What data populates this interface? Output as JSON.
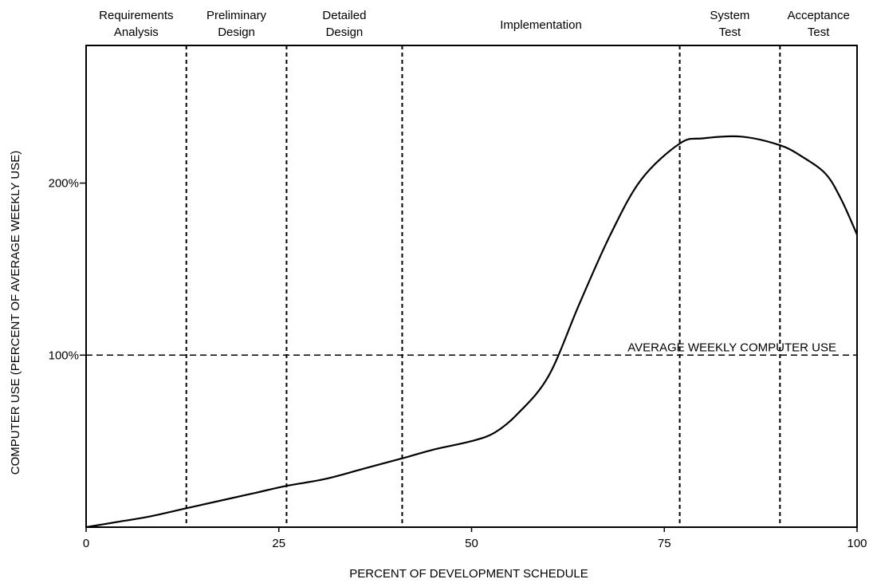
{
  "chart_data": {
    "type": "line",
    "title": "",
    "xlabel": "PERCENT OF DEVELOPMENT SCHEDULE",
    "ylabel": "COMPUTER USE (PERCENT OF AVERAGE WEEKLY USE)",
    "xlim": [
      0,
      100
    ],
    "ylim": [
      0,
      280
    ],
    "grid": false,
    "x_ticks": [
      {
        "value": 0,
        "label": "0"
      },
      {
        "value": 25,
        "label": "25"
      },
      {
        "value": 50,
        "label": "50"
      },
      {
        "value": 75,
        "label": "75"
      },
      {
        "value": 100,
        "label": "100"
      }
    ],
    "y_ticks": [
      {
        "value": 100,
        "label": "100%"
      },
      {
        "value": 200,
        "label": "200%"
      }
    ],
    "phases": [
      {
        "lines": [
          "Requirements",
          "Analysis"
        ],
        "start": 0,
        "end": 13
      },
      {
        "lines": [
          "Preliminary",
          "Design"
        ],
        "start": 13,
        "end": 26
      },
      {
        "lines": [
          "Detailed",
          "Design"
        ],
        "start": 26,
        "end": 41
      },
      {
        "lines": [
          "Implementation"
        ],
        "start": 41,
        "end": 77
      },
      {
        "lines": [
          "System",
          "Test"
        ],
        "start": 77,
        "end": 90
      },
      {
        "lines": [
          "Acceptance",
          "Test"
        ],
        "start": 90,
        "end": 100
      }
    ],
    "reference_line": {
      "y": 100,
      "label": "AVERAGE WEEKLY COMPUTER USE"
    },
    "series": [
      {
        "x": [
          0,
          4,
          8,
          13,
          18,
          22,
          26,
          31,
          36,
          41,
          45,
          50,
          53,
          56,
          60,
          64,
          68,
          72,
          77,
          80,
          85,
          90,
          93,
          96,
          98,
          100
        ],
        "values": [
          0,
          3,
          6,
          11,
          16,
          20,
          24,
          28,
          34,
          40,
          45,
          50,
          55,
          66,
          88,
          130,
          170,
          202,
          223,
          226,
          227,
          222,
          215,
          205,
          190,
          170
        ]
      }
    ]
  }
}
